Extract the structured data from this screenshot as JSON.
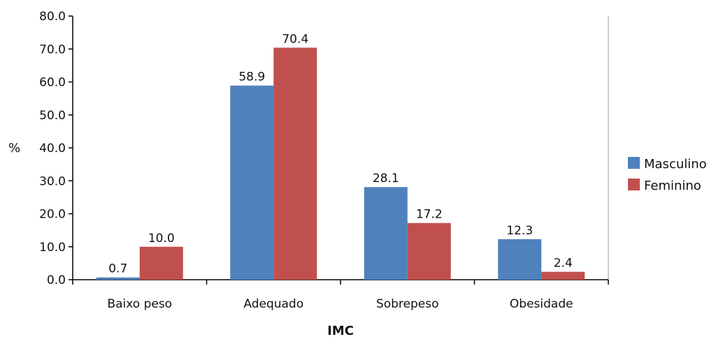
{
  "chart_data": {
    "type": "bar",
    "title": "",
    "xlabel": "IMC",
    "ylabel": "%",
    "ylim": [
      0,
      80
    ],
    "yticks": [
      "0.0",
      "10.0",
      "20.0",
      "30.0",
      "40.0",
      "50.0",
      "60.0",
      "70.0",
      "80.0"
    ],
    "categories": [
      "Baixo peso",
      "Adequado",
      "Sobrepeso",
      "Obesidade"
    ],
    "series": [
      {
        "name": "Masculino",
        "color": "#4F81BD",
        "values": [
          0.7,
          58.9,
          28.1,
          12.3
        ],
        "labels": [
          "0.7",
          "58.9",
          "28.1",
          "12.3"
        ]
      },
      {
        "name": "Feminino",
        "color": "#C0504D",
        "values": [
          10.0,
          70.4,
          17.2,
          2.4
        ],
        "labels": [
          "10.0",
          "70.4",
          "17.2",
          "2.4"
        ]
      }
    ],
    "grid": false,
    "legend": "right"
  }
}
